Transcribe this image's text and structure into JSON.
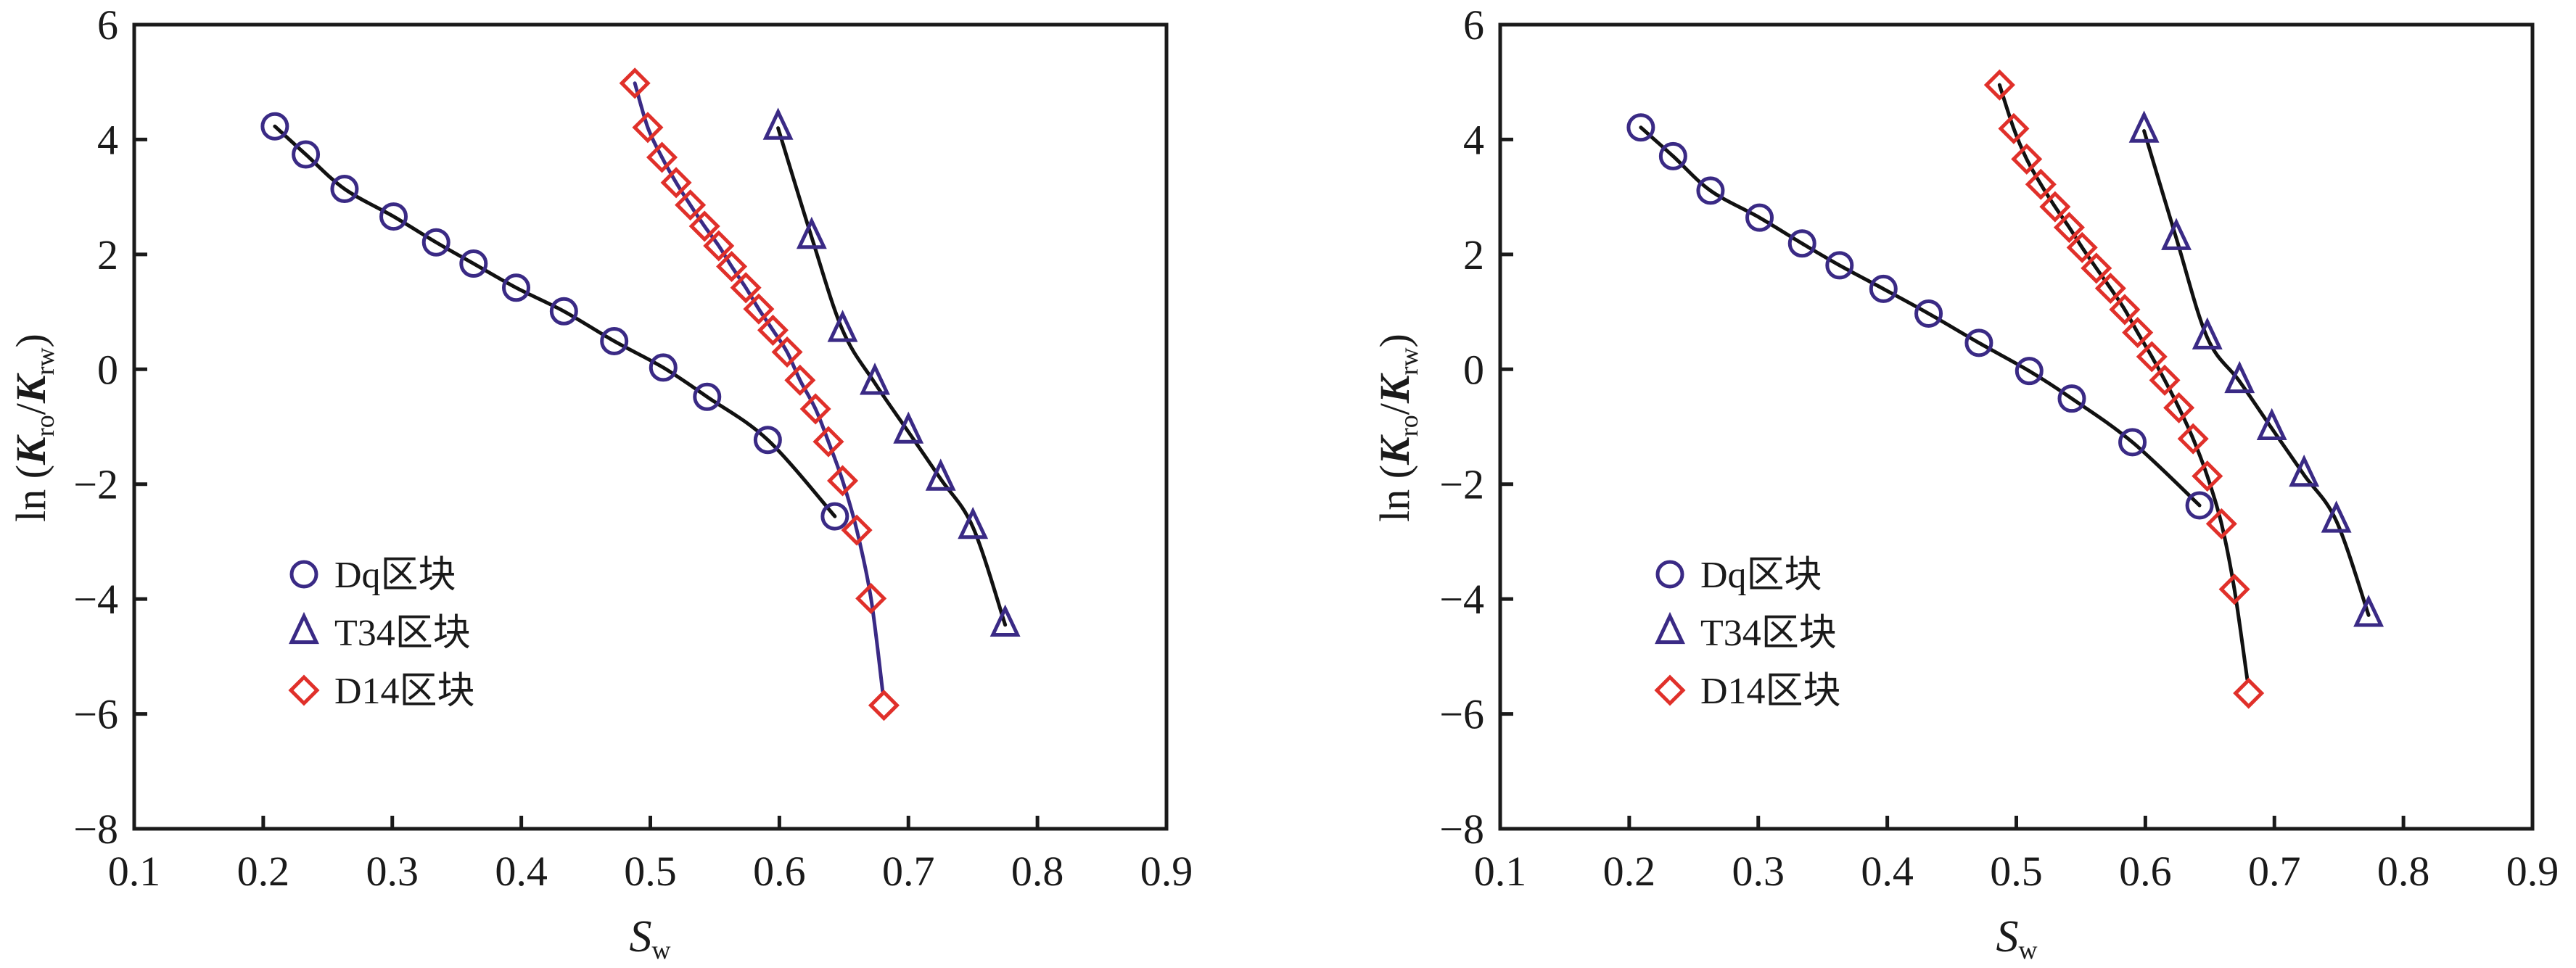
{
  "colors": {
    "marker_blue": "#3a2a85",
    "marker_red": "#e0302a",
    "fit_black": "#111111",
    "axis": "#1a1a1a"
  },
  "chart_data": [
    {
      "type": "scatter",
      "title": "",
      "xlabel": "S",
      "xlabel_sub": "w",
      "ylabel_prefix": "ln (",
      "ylabel_k1": "K",
      "ylabel_k1_sub": "ro",
      "ylabel_slash": "/",
      "ylabel_k2": "K",
      "ylabel_k2_sub": "rw",
      "ylabel_suffix": ")",
      "xlim": [
        0.1,
        0.9
      ],
      "ylim": [
        -8,
        6
      ],
      "xticks": [
        "0.1",
        "0.2",
        "0.3",
        "0.4",
        "0.5",
        "0.6",
        "0.7",
        "0.8",
        "0.9"
      ],
      "yticks": [
        "6",
        "4",
        "2",
        "0",
        "−2",
        "−4",
        "−6",
        "−8"
      ],
      "legend_position": "lower-left",
      "series": [
        {
          "name": "Dq区块",
          "marker": "circle",
          "marker_color": "#3a2a85",
          "fit_color": "#111111",
          "x": [
            0.209,
            0.233,
            0.263,
            0.301,
            0.334,
            0.363,
            0.396,
            0.433,
            0.472,
            0.51,
            0.544,
            0.591,
            0.643
          ],
          "y": [
            4.23,
            3.74,
            3.14,
            2.66,
            2.21,
            1.84,
            1.42,
            1.01,
            0.49,
            0.03,
            -0.48,
            -1.23,
            -2.56
          ]
        },
        {
          "name": "T34区块",
          "marker": "triangle",
          "marker_color": "#3a2a85",
          "fit_color": "#111111",
          "x": [
            0.599,
            0.625,
            0.649,
            0.674,
            0.7,
            0.725,
            0.75,
            0.775
          ],
          "y": [
            4.2,
            2.3,
            0.68,
            -0.24,
            -1.09,
            -1.91,
            -2.75,
            -4.45
          ]
        },
        {
          "name": "D14区块",
          "marker": "diamond",
          "marker_color": "#e0302a",
          "fit_color": "#3a2a85",
          "x": [
            0.488,
            0.498,
            0.509,
            0.52,
            0.531,
            0.542,
            0.553,
            0.563,
            0.574,
            0.584,
            0.595,
            0.606,
            0.616,
            0.628,
            0.638,
            0.649,
            0.66,
            0.671,
            0.681
          ],
          "y": [
            4.98,
            4.21,
            3.69,
            3.25,
            2.86,
            2.49,
            2.15,
            1.79,
            1.42,
            1.05,
            0.68,
            0.3,
            -0.19,
            -0.69,
            -1.26,
            -1.94,
            -2.8,
            -3.99,
            -5.85
          ]
        }
      ],
      "fit_end": {
        "D14区块": [
          0.68,
          -5.6
        ]
      }
    },
    {
      "type": "scatter",
      "title": "",
      "xlabel": "S",
      "xlabel_sub": "w",
      "ylabel_prefix": "ln (",
      "ylabel_k1": "K",
      "ylabel_k1_sub": "ro",
      "ylabel_slash": "/",
      "ylabel_k2": "K",
      "ylabel_k2_sub": "rw",
      "ylabel_suffix": ")",
      "xlim": [
        0.1,
        0.9
      ],
      "ylim": [
        -8,
        6
      ],
      "xticks": [
        "0.1",
        "0.2",
        "0.3",
        "0.4",
        "0.5",
        "0.6",
        "0.7",
        "0.8",
        "0.9"
      ],
      "yticks": [
        "6",
        "4",
        "2",
        "0",
        "−2",
        "−4",
        "−6",
        "−8"
      ],
      "legend_position": "lower-left",
      "series": [
        {
          "name": "Dq区块",
          "marker": "circle",
          "marker_color": "#3a2a85",
          "fit_color": "#111111",
          "x": [
            0.209,
            0.234,
            0.263,
            0.301,
            0.334,
            0.363,
            0.397,
            0.432,
            0.471,
            0.51,
            0.543,
            0.59,
            0.642
          ],
          "y": [
            4.21,
            3.71,
            3.11,
            2.64,
            2.19,
            1.81,
            1.4,
            0.97,
            0.46,
            -0.03,
            -0.51,
            -1.27,
            -2.37
          ]
        },
        {
          "name": "T34区块",
          "marker": "triangle",
          "marker_color": "#3a2a85",
          "fit_color": "#111111",
          "x": [
            0.599,
            0.624,
            0.648,
            0.673,
            0.698,
            0.723,
            0.748,
            0.773
          ],
          "y": [
            4.15,
            2.28,
            0.55,
            -0.21,
            -1.03,
            -1.84,
            -2.64,
            -4.28
          ]
        },
        {
          "name": "D14区块",
          "marker": "diamond",
          "marker_color": "#e0302a",
          "fit_color": "#111111",
          "x": [
            0.487,
            0.498,
            0.508,
            0.519,
            0.53,
            0.541,
            0.551,
            0.562,
            0.573,
            0.584,
            0.594,
            0.605,
            0.615,
            0.626,
            0.637,
            0.648,
            0.659,
            0.669,
            0.68
          ],
          "y": [
            4.95,
            4.19,
            3.66,
            3.22,
            2.83,
            2.47,
            2.12,
            1.76,
            1.41,
            1.04,
            0.64,
            0.22,
            -0.19,
            -0.67,
            -1.21,
            -1.86,
            -2.69,
            -3.83,
            -5.64
          ]
        }
      ],
      "fit_end": {
        "D14区块": [
          0.679,
          -5.4
        ]
      }
    }
  ]
}
